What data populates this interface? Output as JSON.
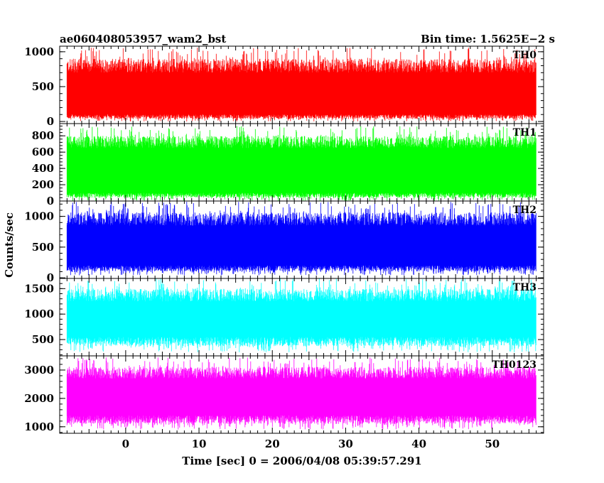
{
  "header": {
    "title_left": "ae060408053957_wam2_bst",
    "title_right": "Bin time: 1.5625E−2 s"
  },
  "chart_data": {
    "type": "line",
    "xlabel": "Time [sec] 0 = 2006/04/08 05:39:57.291",
    "ylabel": "Counts/sec",
    "xlim": [
      -9,
      57
    ],
    "x_range_data": [
      -8,
      56
    ],
    "x_ticks": [
      0,
      10,
      20,
      30,
      40,
      50
    ],
    "x_tick_labels": [
      "0",
      "10",
      "20",
      "30",
      "40",
      "50"
    ],
    "panels": [
      {
        "name": "TH0",
        "color": "#ff0000",
        "ylim": [
          -30,
          1080
        ],
        "ticks": [
          0,
          500,
          1000
        ],
        "tick_labels": [
          "0",
          "500",
          "1000"
        ],
        "typical_low": 100,
        "typical_high": 700,
        "max": 1060,
        "min": 0
      },
      {
        "name": "TH1",
        "color": "#00ff00",
        "ylim": [
          0,
          950
        ],
        "ticks": [
          0,
          200,
          400,
          600,
          800
        ],
        "tick_labels": [
          "0",
          "200",
          "400",
          "600",
          "800"
        ],
        "typical_low": 100,
        "typical_high": 650,
        "max": 920,
        "min": 0
      },
      {
        "name": "TH2",
        "color": "#0000ff",
        "ylim": [
          -10,
          1250
        ],
        "ticks": [
          0,
          500,
          1000
        ],
        "tick_labels": [
          "0",
          "500",
          "1000"
        ],
        "typical_low": 200,
        "typical_high": 850,
        "max": 1240,
        "min": 40
      },
      {
        "name": "TH3",
        "color": "#00ffff",
        "ylim": [
          180,
          1700
        ],
        "ticks": [
          500,
          1000,
          1500
        ],
        "tick_labels": [
          "500",
          "1000",
          "1500"
        ],
        "typical_low": 550,
        "typical_high": 1250,
        "max": 1700,
        "min": 250
      },
      {
        "name": "TH0123",
        "color": "#ff00ff",
        "ylim": [
          770,
          3500
        ],
        "ticks": [
          1000,
          2000,
          3000
        ],
        "tick_labels": [
          "1000",
          "2000",
          "3000"
        ],
        "typical_low": 1400,
        "typical_high": 2700,
        "max": 3450,
        "min": 900
      }
    ]
  }
}
